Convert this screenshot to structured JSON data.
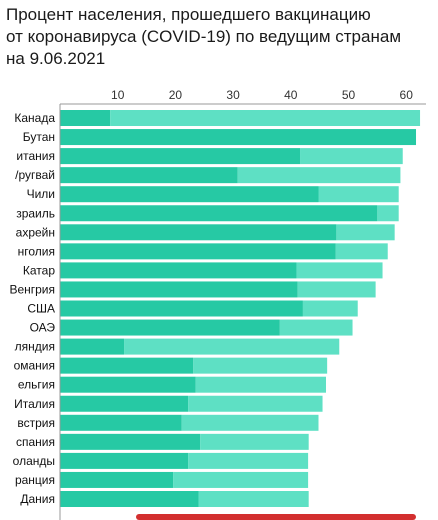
{
  "title_lines": [
    "Процент населения, прошедшего вакцинацию",
    "от коронавируса (COVID-19) по ведущим странам",
    "на 9.06.2021"
  ],
  "colors": {
    "full": "#26c9a4",
    "partial": "#5ee0c4",
    "axis": "#999999",
    "scroll_indicator": "#d32f2f"
  },
  "chart_data": {
    "type": "bar",
    "orientation": "horizontal",
    "stacked": true,
    "title": "Процент населения, прошедшего вакцинацию от коронавируса (COVID-19) по ведущим странам на 9.06.2021",
    "xlabel": "",
    "ylabel": "",
    "xlim": [
      0,
      63
    ],
    "xticks": [
      10,
      20,
      30,
      40,
      50,
      60
    ],
    "xaxis_position": "top",
    "grid": false,
    "legend": "none",
    "categories": [
      "Канада",
      "Бутан",
      "итания",
      "/ругвай",
      "Чили",
      "зраиль",
      "ахрейн",
      "нголия",
      "Катар",
      "Венгрия",
      "США",
      "ОАЭ",
      "ляндия",
      "омания",
      "ельгия",
      "Италия",
      "встрия",
      "спания",
      "оланды",
      "ранция",
      "Дания"
    ],
    "series": [
      {
        "values": [
          8.7,
          61.7,
          41.6,
          30.8,
          44.8,
          55.0,
          47.9,
          47.8,
          41.0,
          41.2,
          42.1,
          38.1,
          11.1,
          23.1,
          23.5,
          22.2,
          21.1,
          24.3,
          22.2,
          19.6,
          24.0
        ]
      },
      {
        "values": [
          53.7,
          0.0,
          17.8,
          28.2,
          13.9,
          3.7,
          10.1,
          9.0,
          14.9,
          13.5,
          9.5,
          12.6,
          37.3,
          23.2,
          22.6,
          23.3,
          23.7,
          18.8,
          20.8,
          23.4,
          19.1
        ]
      }
    ]
  }
}
